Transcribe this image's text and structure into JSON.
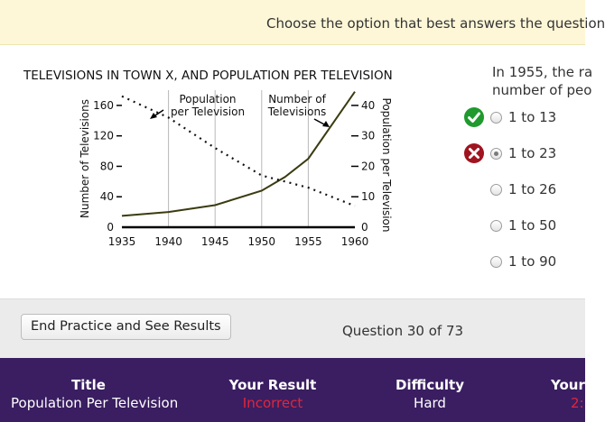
{
  "banner": {
    "instruction": "Choose the option that best answers the question"
  },
  "figure": {
    "title": "TELEVISIONS IN TOWN X, AND POPULATION PER TELEVISION",
    "annotation_population": [
      "Population",
      "per Television"
    ],
    "annotation_televisions": [
      "Number of",
      "Televisions"
    ]
  },
  "chart_data": {
    "type": "line",
    "title": "TELEVISIONS IN TOWN X, AND POPULATION PER TELEVISION",
    "x": [
      1935,
      1940,
      1945,
      1950,
      1955,
      1960
    ],
    "x_ticks": [
      "1935",
      "1940",
      "1945",
      "1950",
      "1955",
      "1960"
    ],
    "xlim": [
      1935,
      1960
    ],
    "ylabel_left": "Number of Televisions",
    "ylabel_right": "Population per Television",
    "ylim_left": [
      0,
      180
    ],
    "ylim_right": [
      0,
      45
    ],
    "yticks_left": [
      0,
      40,
      80,
      120,
      160
    ],
    "yticks_right": [
      0,
      10,
      20,
      30,
      40
    ],
    "grid": "vertical",
    "series": [
      {
        "name": "Number of Televisions",
        "axis": "left",
        "style": "solid",
        "x": [
          1935,
          1940,
          1945,
          1950,
          1952.5,
          1955,
          1960
        ],
        "values": [
          15,
          20,
          29,
          48,
          66,
          90,
          178
        ]
      },
      {
        "name": "Population per Television",
        "axis": "right",
        "style": "dotted",
        "x": [
          1935,
          1940,
          1945,
          1950,
          1955,
          1960
        ],
        "values": [
          43,
          36,
          26,
          17,
          13,
          7
        ]
      }
    ]
  },
  "question": {
    "line1": "In 1955, the ra",
    "line2": "number of peo"
  },
  "options": [
    {
      "label": "1 to 13",
      "status": "correct",
      "selected": false,
      "status_icon": "checkmark-icon"
    },
    {
      "label": "1 to 23",
      "status": "incorrect",
      "selected": true,
      "status_icon": "x-icon"
    },
    {
      "label": "1 to 26",
      "status": "",
      "selected": false
    },
    {
      "label": "1 to 50",
      "status": "",
      "selected": false
    },
    {
      "label": "1 to 90",
      "status": "",
      "selected": false
    }
  ],
  "footer": {
    "end_button": "End Practice and See Results",
    "progress": "Question 30 of 73"
  },
  "results": {
    "title_head": "Title",
    "title_val": "Population Per Television",
    "result_head": "Your Result",
    "result_val": "Incorrect",
    "difficulty_head": "Difficulty",
    "difficulty_val": "Hard",
    "your_head": "Your",
    "your_val": "2:"
  },
  "colors": {
    "banner_bg": "#fdf7d7",
    "results_bg": "#3a1e61",
    "incorrect": "#e0263d",
    "correct": "#1f9a2e",
    "tv_line": "#3b3b10"
  }
}
